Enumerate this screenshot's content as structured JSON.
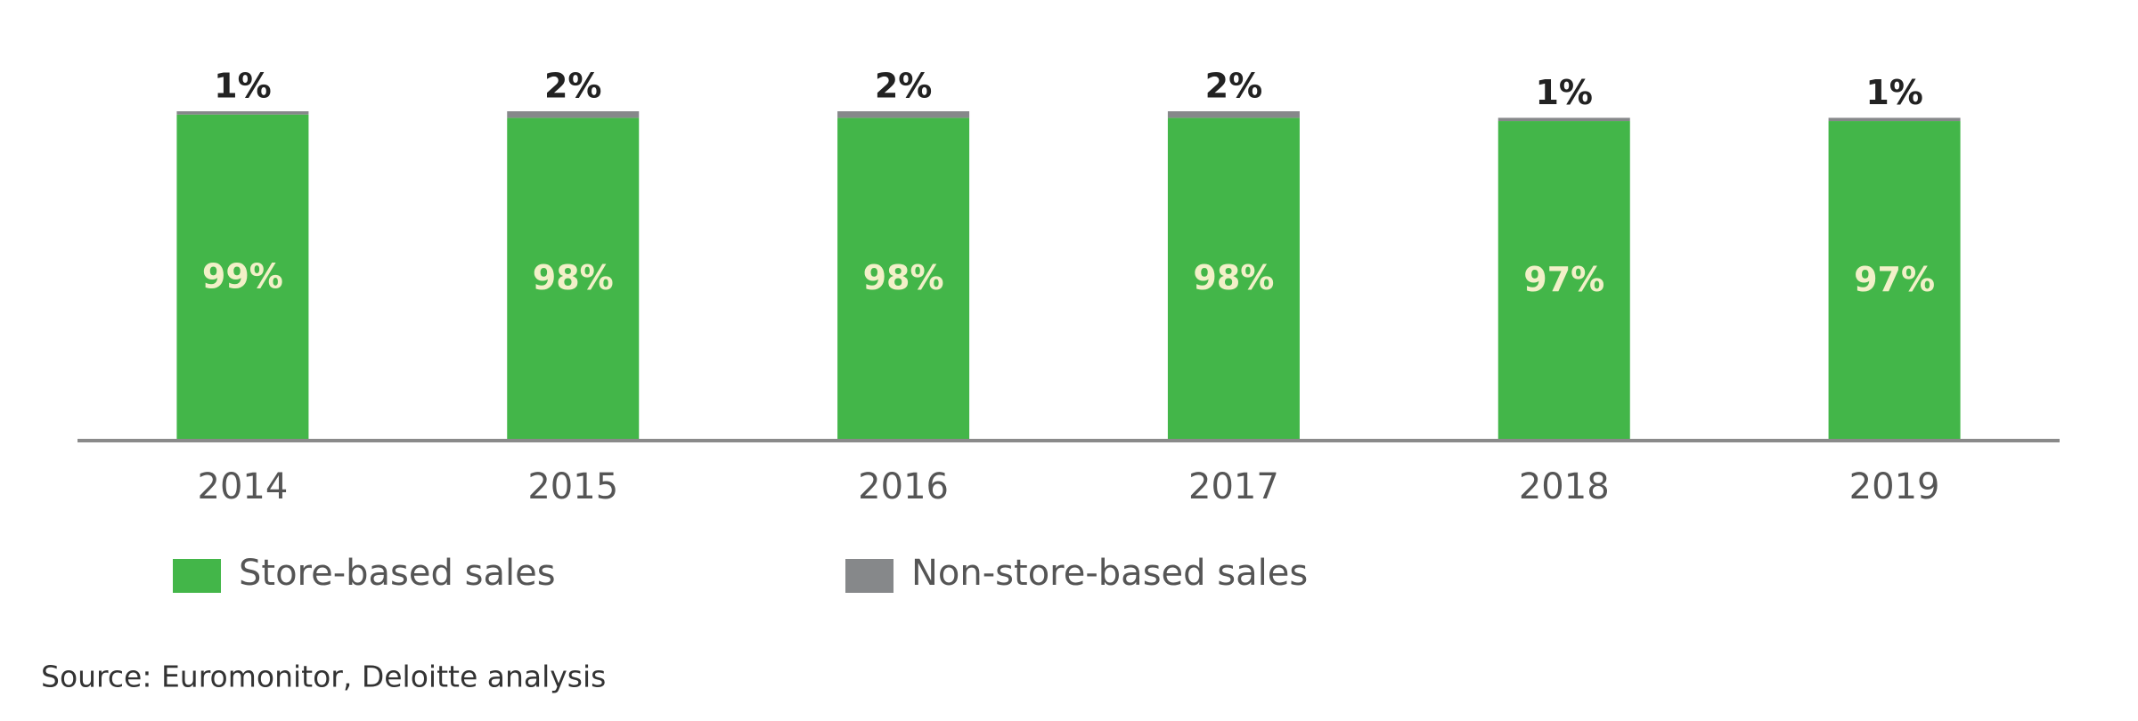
{
  "chart_data": {
    "type": "stacked_bar",
    "categories": [
      "2014",
      "2015",
      "2016",
      "2017",
      "2018",
      "2019"
    ],
    "series": [
      {
        "name": "Store-based sales",
        "color": "#43b649",
        "values": [
          99,
          98,
          98,
          98,
          97,
          97
        ],
        "value_labels": [
          "99%",
          "98%",
          "98%",
          "98%",
          "97%",
          "97%"
        ]
      },
      {
        "name": "Non-store-based sales",
        "color": "#86888a",
        "values": [
          1,
          2,
          2,
          2,
          1,
          1
        ],
        "value_labels": [
          "1%",
          "2%",
          "2%",
          "2%",
          "1%",
          "1%"
        ]
      }
    ],
    "ylim": [
      0,
      100
    ],
    "source": "Source: Euromonitor, Deloitte analysis"
  }
}
